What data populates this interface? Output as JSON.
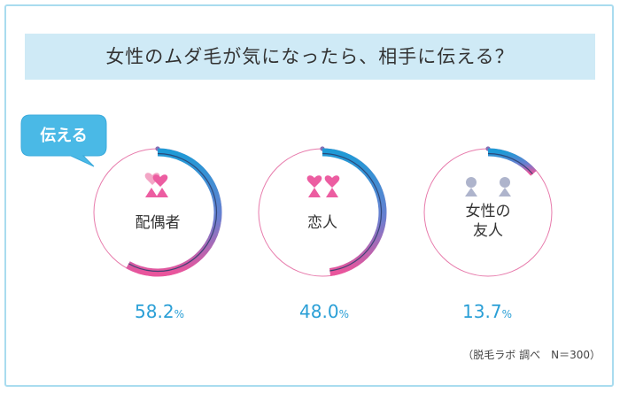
{
  "title": "女性のムダ毛が気になったら、相手に伝える？",
  "badge": "伝える",
  "source": "（脱毛ラボ 調べ　N＝300）",
  "chart_data": {
    "type": "donut",
    "unit": "%",
    "series": [
      {
        "label": "配偶者",
        "value": 58.2,
        "display": "58.2"
      },
      {
        "label": "恋人",
        "value": 48.0,
        "display": "48.0"
      },
      {
        "label": "女性の友人",
        "value": 13.7,
        "display": "13.7"
      }
    ],
    "max": 100
  },
  "colors": {
    "arc_start": "#1e9ad6",
    "arc_end": "#e9559c",
    "thin_line": "#e77aab",
    "pct_text": "#2a9fd6",
    "title_band": "#cfeaf6",
    "frame": "#a9dcef",
    "icon_pink": "#ec5da1",
    "icon_grey": "#aeb4cc"
  }
}
